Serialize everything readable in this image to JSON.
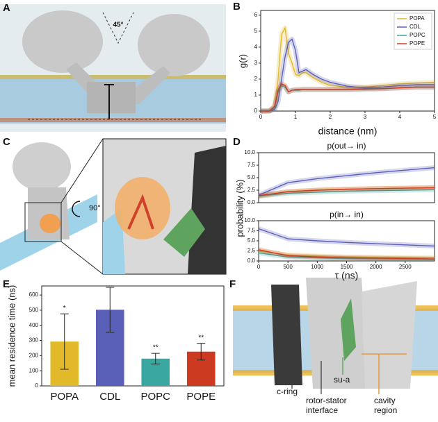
{
  "figure_panels": {
    "A": {
      "panel": "A",
      "angle_label": "45°"
    },
    "C": {
      "panel": "C",
      "rotation_label": "90°"
    },
    "F": {
      "panel": "F",
      "labels": {
        "c_ring": "c-ring",
        "su_a": "su-a",
        "interface": [
          "rotor-stator",
          "interface"
        ],
        "cavity": [
          "cavity",
          "region"
        ]
      }
    }
  },
  "chart_data": [
    {
      "type": "line",
      "panel": "B",
      "ylabel": "g(r)",
      "xlabel": "distance (nm)",
      "xlim": [
        0,
        5
      ],
      "ylim": [
        0,
        6.3
      ],
      "xticks": [
        0,
        1,
        2,
        3,
        4,
        5
      ],
      "yticks": [
        0,
        1,
        2,
        3,
        4,
        5,
        6
      ],
      "legend": "upper right",
      "x": [
        0,
        0.25,
        0.4,
        0.5,
        0.6,
        0.7,
        0.8,
        0.9,
        1.0,
        1.1,
        1.2,
        1.3,
        1.5,
        1.75,
        2,
        2.5,
        3,
        3.5,
        4,
        4.5,
        5
      ],
      "series": [
        {
          "name": "POPA",
          "color": "#e3b92c",
          "values": [
            0,
            0,
            0.3,
            2,
            4.8,
            5.2,
            3.6,
            3.0,
            2.3,
            2.2,
            2.4,
            2.4,
            2.1,
            1.8,
            1.6,
            1.5,
            1.5,
            1.6,
            1.7,
            1.75,
            1.8
          ]
        },
        {
          "name": "CDL",
          "color": "#5a5fb8",
          "values": [
            0,
            0,
            0.1,
            0.6,
            2,
            3.4,
            4.3,
            4.5,
            3.8,
            2.4,
            2.5,
            2.6,
            2.3,
            2.0,
            1.8,
            1.55,
            1.45,
            1.5,
            1.6,
            1.65,
            1.65
          ]
        },
        {
          "name": "POPC",
          "color": "#3aa8a0",
          "values": [
            0,
            0,
            0.2,
            1.2,
            1.6,
            1.5,
            1.2,
            1.3,
            1.3,
            1.3,
            1.35,
            1.35,
            1.35,
            1.35,
            1.35,
            1.35,
            1.35,
            1.4,
            1.45,
            1.5,
            1.5
          ]
        },
        {
          "name": "POPE",
          "color": "#cc3a22",
          "values": [
            0,
            0,
            0.3,
            1.3,
            1.7,
            1.6,
            1.2,
            1.3,
            1.35,
            1.35,
            1.35,
            1.35,
            1.35,
            1.35,
            1.35,
            1.35,
            1.4,
            1.4,
            1.45,
            1.5,
            1.5
          ]
        }
      ]
    },
    {
      "type": "line",
      "panel": "D",
      "title": "p(out→ in)",
      "ylabel": "probability (%)",
      "xlim": [
        0,
        3000
      ],
      "ylim": [
        0,
        10
      ],
      "yticks": [
        {
          "value": 0,
          "label": "0.0"
        },
        2.5,
        {
          "value": 5,
          "label": "5.0"
        },
        7.5,
        {
          "value": 10,
          "label": "10.0"
        }
      ],
      "x": [
        0,
        500,
        1000,
        1500,
        2000,
        2500,
        3000
      ],
      "series": [
        {
          "color": "#e3b92c",
          "values": [
            1.3,
            2.2,
            2.5,
            2.7,
            2.8,
            2.9,
            3
          ]
        },
        {
          "color": "#5a5fb8",
          "values": [
            1.5,
            4,
            4.8,
            5.4,
            6,
            6.5,
            7
          ]
        },
        {
          "color": "#3aa8a0",
          "values": [
            1.3,
            1.9,
            2.1,
            2.3,
            2.4,
            2.5,
            2.6
          ]
        },
        {
          "color": "#cc3a22",
          "values": [
            1.4,
            2.2,
            2.5,
            2.7,
            2.8,
            2.9,
            3
          ]
        }
      ]
    },
    {
      "type": "line",
      "title": "p(in→ in)",
      "xlabel": "τ (ns)",
      "xlim": [
        0,
        3000
      ],
      "ylim": [
        0,
        10
      ],
      "xticks": [
        0,
        500,
        1000,
        1500,
        2000,
        2500
      ],
      "yticks": [
        {
          "value": 0,
          "label": "0.0"
        },
        2.5,
        {
          "value": 5,
          "label": "5.0"
        },
        7.5,
        {
          "value": 10,
          "label": "10.0"
        }
      ],
      "x": [
        0,
        500,
        1000,
        1500,
        2000,
        2500,
        3000
      ],
      "series": [
        {
          "color": "#e3b92c",
          "values": [
            2.5,
            1.5,
            1.2,
            1,
            0.9,
            0.85,
            0.8
          ]
        },
        {
          "color": "#5a5fb8",
          "values": [
            8,
            5.5,
            5,
            4.6,
            4.3,
            4,
            3.7
          ]
        },
        {
          "color": "#3aa8a0",
          "values": [
            2,
            1,
            0.8,
            0.6,
            0.5,
            0.45,
            0.4
          ]
        },
        {
          "color": "#cc3a22",
          "values": [
            2.8,
            1.3,
            1,
            0.8,
            0.7,
            0.6,
            0.5
          ]
        }
      ]
    },
    {
      "type": "bar",
      "panel": "E",
      "ylabel": "mean residence time (ns)",
      "categories": [
        "POPA",
        "CDL",
        "POPC",
        "POPE"
      ],
      "values": [
        293,
        503,
        180,
        226
      ],
      "errors": [
        183,
        148,
        35,
        55
      ],
      "significance": [
        "*",
        null,
        "**",
        "**"
      ],
      "colors": [
        "#e3b92c",
        "#5a5fb8",
        "#3aa8a0",
        "#cc3a22"
      ],
      "ylim": [
        0,
        660
      ],
      "yticks": [
        0,
        100,
        200,
        300,
        400,
        500,
        600
      ]
    }
  ]
}
